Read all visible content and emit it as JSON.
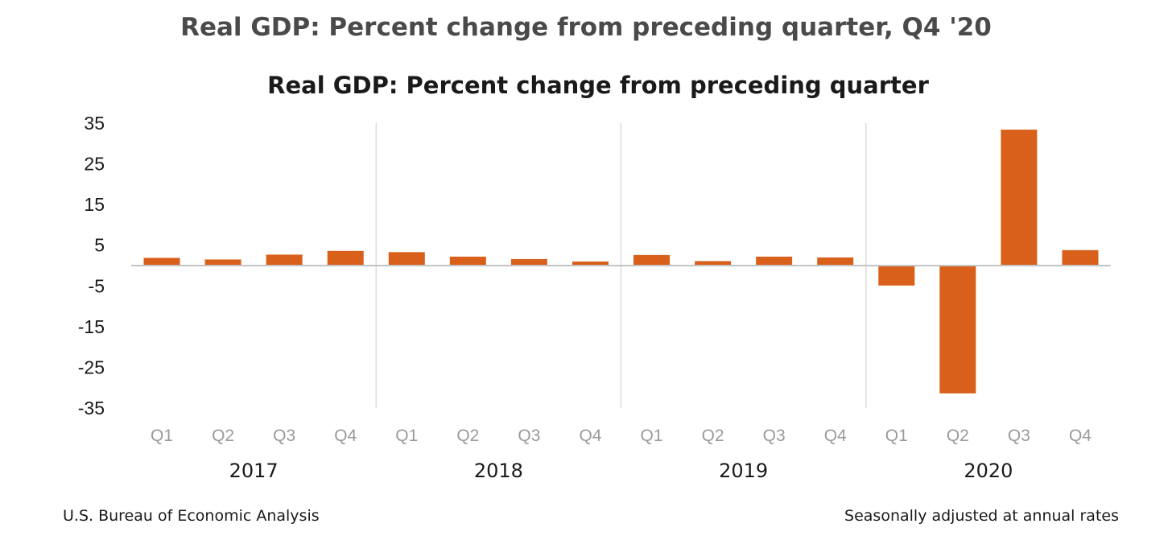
{
  "page": {
    "title": "Real GDP: Percent change from preceding quarter, Q4 '20"
  },
  "chart_data": {
    "type": "bar",
    "title": "Real GDP:  Percent change from preceding quarter",
    "xlabel": "",
    "ylabel": "",
    "ylim": [
      -35,
      35
    ],
    "yticks": [
      35,
      25,
      15,
      5,
      -5,
      -15,
      -25,
      -35
    ],
    "categories": [
      "Q1",
      "Q2",
      "Q3",
      "Q4",
      "Q1",
      "Q2",
      "Q3",
      "Q4",
      "Q1",
      "Q2",
      "Q3",
      "Q4",
      "Q1",
      "Q2",
      "Q3",
      "Q4"
    ],
    "groups": [
      "2017",
      "2018",
      "2019",
      "2020"
    ],
    "values": [
      1.9,
      1.5,
      2.7,
      3.6,
      3.3,
      2.2,
      1.6,
      1.0,
      2.6,
      1.1,
      2.2,
      2.0,
      -4.9,
      -31.4,
      33.4,
      3.8
    ],
    "bar_color": "#d8601b",
    "grid": false,
    "source": "U.S. Bureau of Economic Analysis",
    "note": "Seasonally adjusted at annual rates"
  }
}
